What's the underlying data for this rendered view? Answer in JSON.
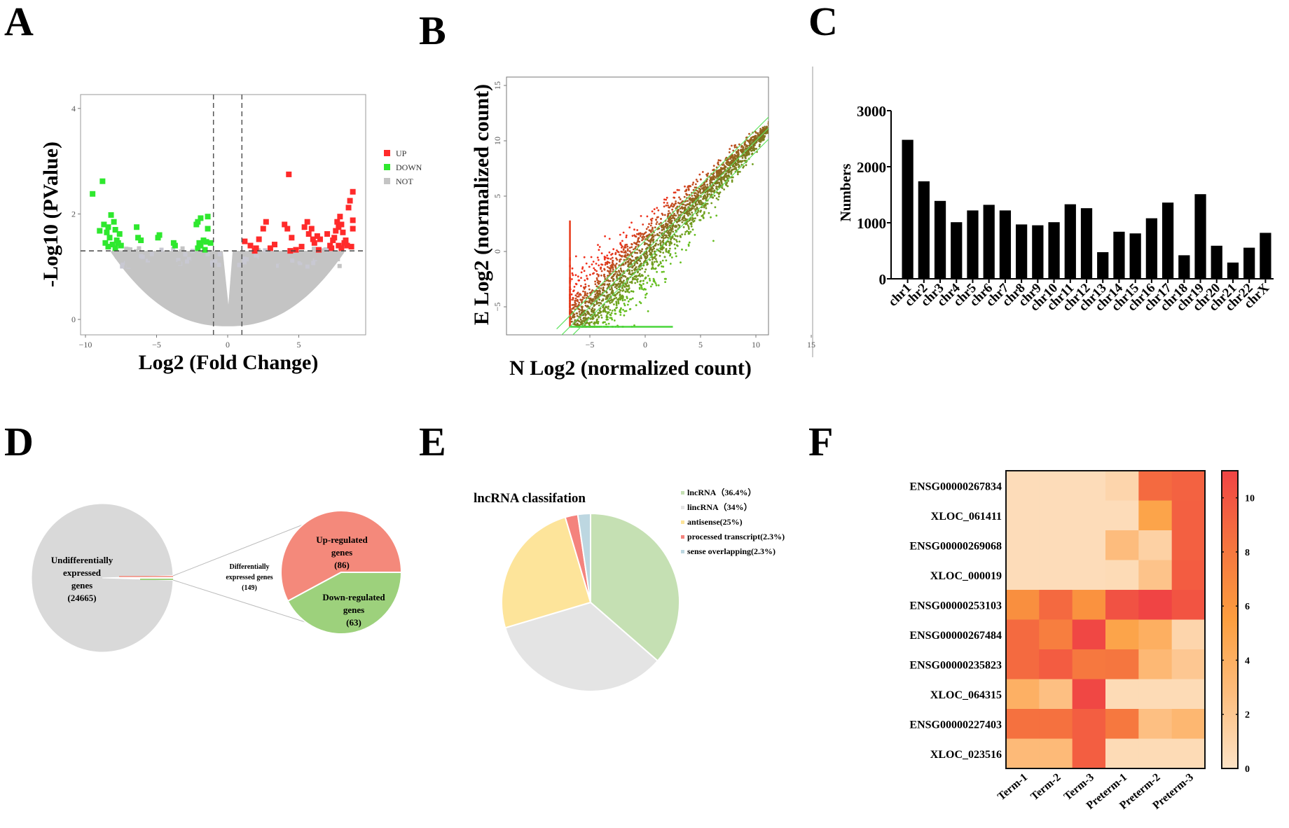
{
  "panels": {
    "A": "A",
    "B": "B",
    "C": "C",
    "D": "D",
    "E": "E",
    "F": "F"
  },
  "chart_data": [
    {
      "id": "A",
      "type": "scatter",
      "title": "",
      "xlabel": "Log2 (Fold Change)",
      "ylabel": "-Log10 (PValue)",
      "xlim": [
        -10.3,
        9.8
      ],
      "ylim": [
        -0.4,
        4.5
      ],
      "xticks": [
        -10,
        -5,
        0,
        5
      ],
      "yticks": [
        0,
        2,
        4
      ],
      "thresholds": {
        "log2fc": [
          -1,
          1
        ],
        "neg_log10_p": 1.3
      },
      "legend": {
        "position": "right",
        "entries": [
          {
            "label": "UP",
            "color": "#ff2a2a"
          },
          {
            "label": "DOWN",
            "color": "#2ee82e"
          },
          {
            "label": "NOT",
            "color": "#c4c4c4"
          }
        ]
      },
      "series": [
        {
          "name": "DOWN",
          "color": "#2ee82e",
          "points": [
            [
              -9.5,
              2.38
            ],
            [
              -8.8,
              2.62
            ],
            [
              -8.5,
              1.65
            ],
            [
              -9.0,
              1.68
            ],
            [
              -8.7,
              1.8
            ],
            [
              -8.4,
              1.75
            ],
            [
              -8.2,
              1.98
            ],
            [
              -8.0,
              1.85
            ],
            [
              -7.9,
              1.7
            ],
            [
              -8.6,
              1.45
            ],
            [
              -8.3,
              1.55
            ],
            [
              -8.1,
              1.42
            ],
            [
              -7.8,
              1.5
            ],
            [
              -7.6,
              1.62
            ],
            [
              -7.5,
              1.4
            ],
            [
              -7.9,
              1.35
            ],
            [
              -8.4,
              1.38
            ],
            [
              -7.7,
              1.45
            ],
            [
              -6.4,
              1.75
            ],
            [
              -6.3,
              1.55
            ],
            [
              -6.1,
              1.5
            ],
            [
              -4.9,
              1.55
            ],
            [
              -4.8,
              1.6
            ],
            [
              -3.8,
              1.45
            ],
            [
              -3.7,
              1.4
            ],
            [
              -2.2,
              1.8
            ],
            [
              -2.1,
              1.85
            ],
            [
              -1.9,
              1.92
            ],
            [
              -1.4,
              1.95
            ],
            [
              -1.4,
              1.72
            ],
            [
              -1.9,
              1.4
            ],
            [
              -2.1,
              1.35
            ],
            [
              -1.7,
              1.5
            ],
            [
              -1.5,
              1.47
            ],
            [
              -1.2,
              1.45
            ],
            [
              -1.6,
              1.32
            ],
            [
              -2.0,
              1.45
            ]
          ]
        },
        {
          "name": "UP",
          "color": "#ff2a2a",
          "points": [
            [
              1.2,
              1.48
            ],
            [
              1.6,
              1.4
            ],
            [
              2.0,
              1.35
            ],
            [
              2.2,
              1.52
            ],
            [
              2.5,
              1.72
            ],
            [
              2.7,
              1.85
            ],
            [
              1.9,
              1.3
            ],
            [
              3.0,
              1.35
            ],
            [
              3.3,
              1.42
            ],
            [
              4.0,
              1.8
            ],
            [
              4.2,
              1.72
            ],
            [
              4.3,
              2.75
            ],
            [
              4.5,
              1.55
            ],
            [
              4.4,
              1.3
            ],
            [
              4.8,
              1.32
            ],
            [
              5.2,
              1.38
            ],
            [
              5.4,
              1.75
            ],
            [
              5.6,
              1.85
            ],
            [
              5.7,
              1.62
            ],
            [
              5.9,
              1.72
            ],
            [
              6.0,
              1.52
            ],
            [
              6.1,
              1.45
            ],
            [
              6.3,
              1.58
            ],
            [
              6.5,
              1.52
            ],
            [
              6.4,
              1.32
            ],
            [
              7.0,
              1.62
            ],
            [
              7.2,
              1.4
            ],
            [
              7.4,
              1.5
            ],
            [
              7.5,
              1.55
            ],
            [
              7.6,
              1.68
            ],
            [
              7.7,
              1.85
            ],
            [
              7.8,
              1.75
            ],
            [
              7.9,
              1.95
            ],
            [
              8.0,
              1.8
            ],
            [
              8.1,
              1.65
            ],
            [
              8.2,
              1.45
            ],
            [
              7.8,
              1.4
            ],
            [
              8.0,
              1.35
            ],
            [
              8.3,
              1.5
            ],
            [
              8.4,
              1.4
            ],
            [
              8.5,
              2.12
            ],
            [
              8.6,
              2.25
            ],
            [
              8.8,
              2.42
            ],
            [
              8.8,
              1.88
            ],
            [
              8.8,
              1.72
            ],
            [
              8.7,
              1.38
            ],
            [
              7.3,
              1.35
            ]
          ]
        }
      ]
    },
    {
      "id": "B",
      "type": "scatter",
      "title": "",
      "xlabel": "N Log2 (normalized count)",
      "ylabel": "E Log2 (normalized count)",
      "xlim": [
        -7.5,
        16.5
      ],
      "ylim": [
        -7.5,
        16.5
      ],
      "xticks": [
        -5,
        0,
        5,
        10,
        15
      ],
      "yticks": [
        -5,
        0,
        5,
        10,
        15
      ],
      "reference_lines": [
        {
          "slope": 1,
          "intercept": -1
        },
        {
          "slope": 1,
          "intercept": 0
        },
        {
          "slope": 1,
          "intercept": 1
        }
      ],
      "description": "Dense cloud of genes along the diagonal; red = higher in E, green = higher in N; floor artifacts at x≈-6.8 (vertical) and y≈-6.8 (horizontal)"
    },
    {
      "id": "C",
      "type": "bar",
      "title": "",
      "xlabel": "",
      "ylabel": "Numbers",
      "ylim": [
        0,
        3000
      ],
      "yticks": [
        0,
        1000,
        2000,
        3000
      ],
      "categories": [
        "chr1",
        "chr2",
        "chr3",
        "chr4",
        "chr5",
        "chr6",
        "chr7",
        "chr8",
        "chr9",
        "chr10",
        "chr11",
        "chr12",
        "chr13",
        "chr14",
        "chr15",
        "chr16",
        "chr17",
        "chr18",
        "chr19",
        "chr20",
        "chr21",
        "chr22",
        "chrX"
      ],
      "values": [
        2480,
        1740,
        1390,
        1010,
        1220,
        1320,
        1220,
        970,
        955,
        1010,
        1330,
        1260,
        475,
        840,
        810,
        1080,
        1360,
        420,
        1510,
        590,
        290,
        555,
        820
      ],
      "color": "#000000"
    },
    {
      "id": "D",
      "type": "pie",
      "title": "",
      "main_pie": [
        {
          "label": [
            "Undifferentially",
            "expressed",
            "genes",
            "(24665)"
          ],
          "value": 24665,
          "color": "#d9d9d9"
        },
        {
          "label": [
            "Up-regulated",
            "genes",
            "(86)"
          ],
          "value": 86,
          "color": "#f4897b"
        },
        {
          "label": [
            "Down-regulated",
            "genes",
            "(63)"
          ],
          "value": 63,
          "color": "#9dd17c"
        }
      ],
      "connector_label": [
        "Differentially",
        "expressed genes",
        "(149)"
      ],
      "sub_pie": [
        {
          "label": [
            "Up-regulated",
            "genes",
            "(86)"
          ],
          "value": 86,
          "color": "#f4897b"
        },
        {
          "label": [
            "Down-regulated",
            "genes",
            "(63)"
          ],
          "value": 63,
          "color": "#9dd17c"
        }
      ]
    },
    {
      "id": "E",
      "type": "pie",
      "title": "lncRNA classifation",
      "legend": {
        "position": "right"
      },
      "slices": [
        {
          "label": "lncRNA（36.4%）",
          "value": 36.4,
          "color": "#c5e0b3"
        },
        {
          "label": "lincRNA（34%）",
          "value": 34,
          "color": "#e4e4e4"
        },
        {
          "label": "antisense(25%)",
          "value": 25,
          "color": "#fde49a"
        },
        {
          "label": "processed transcript(2.3%)",
          "value": 2.3,
          "color": "#f4837d"
        },
        {
          "label": "sense overlapping(2.3%)",
          "value": 2.3,
          "color": "#bdd7e1"
        }
      ]
    },
    {
      "id": "F",
      "type": "heatmap",
      "title": "",
      "rows": [
        "ENSG00000267834",
        "XLOC_061411",
        "ENSG00000269068",
        "XLOC_000019",
        "ENSG00000253103",
        "ENSG00000267484",
        "ENSG00000235823",
        "XLOC_064315",
        "ENSG00000227403",
        "XLOC_023516"
      ],
      "columns": [
        "Term-1",
        "Term-2",
        "Term-3",
        "Preterm-1",
        "Preterm-2",
        "Preterm-3"
      ],
      "values": [
        [
          0.5,
          0.5,
          0.5,
          1.0,
          8.8,
          9.3
        ],
        [
          0.5,
          0.5,
          0.5,
          0.5,
          5.0,
          9.4
        ],
        [
          0.5,
          0.5,
          0.5,
          2.8,
          1.3,
          9.4
        ],
        [
          0.5,
          0.5,
          0.5,
          0.6,
          2.3,
          9.6
        ],
        [
          6.5,
          8.9,
          6.3,
          10.2,
          11.0,
          10.1
        ],
        [
          8.8,
          7.6,
          10.8,
          5.0,
          4.0,
          1.0
        ],
        [
          8.8,
          9.6,
          8.0,
          8.1,
          3.2,
          2.0
        ],
        [
          3.9,
          2.6,
          10.8,
          0.6,
          0.6,
          0.6
        ],
        [
          8.4,
          8.4,
          9.5,
          8.0,
          2.6,
          3.3
        ],
        [
          3.0,
          3.0,
          9.5,
          0.6,
          0.6,
          0.6
        ]
      ],
      "colorbar": {
        "range": [
          0,
          11
        ],
        "ticks": [
          0,
          2,
          4,
          6,
          8,
          10
        ],
        "colors": [
          "#fde3c6",
          "#fdbd7e",
          "#fc9e3f",
          "#f5743f",
          "#f04444"
        ]
      }
    }
  ]
}
